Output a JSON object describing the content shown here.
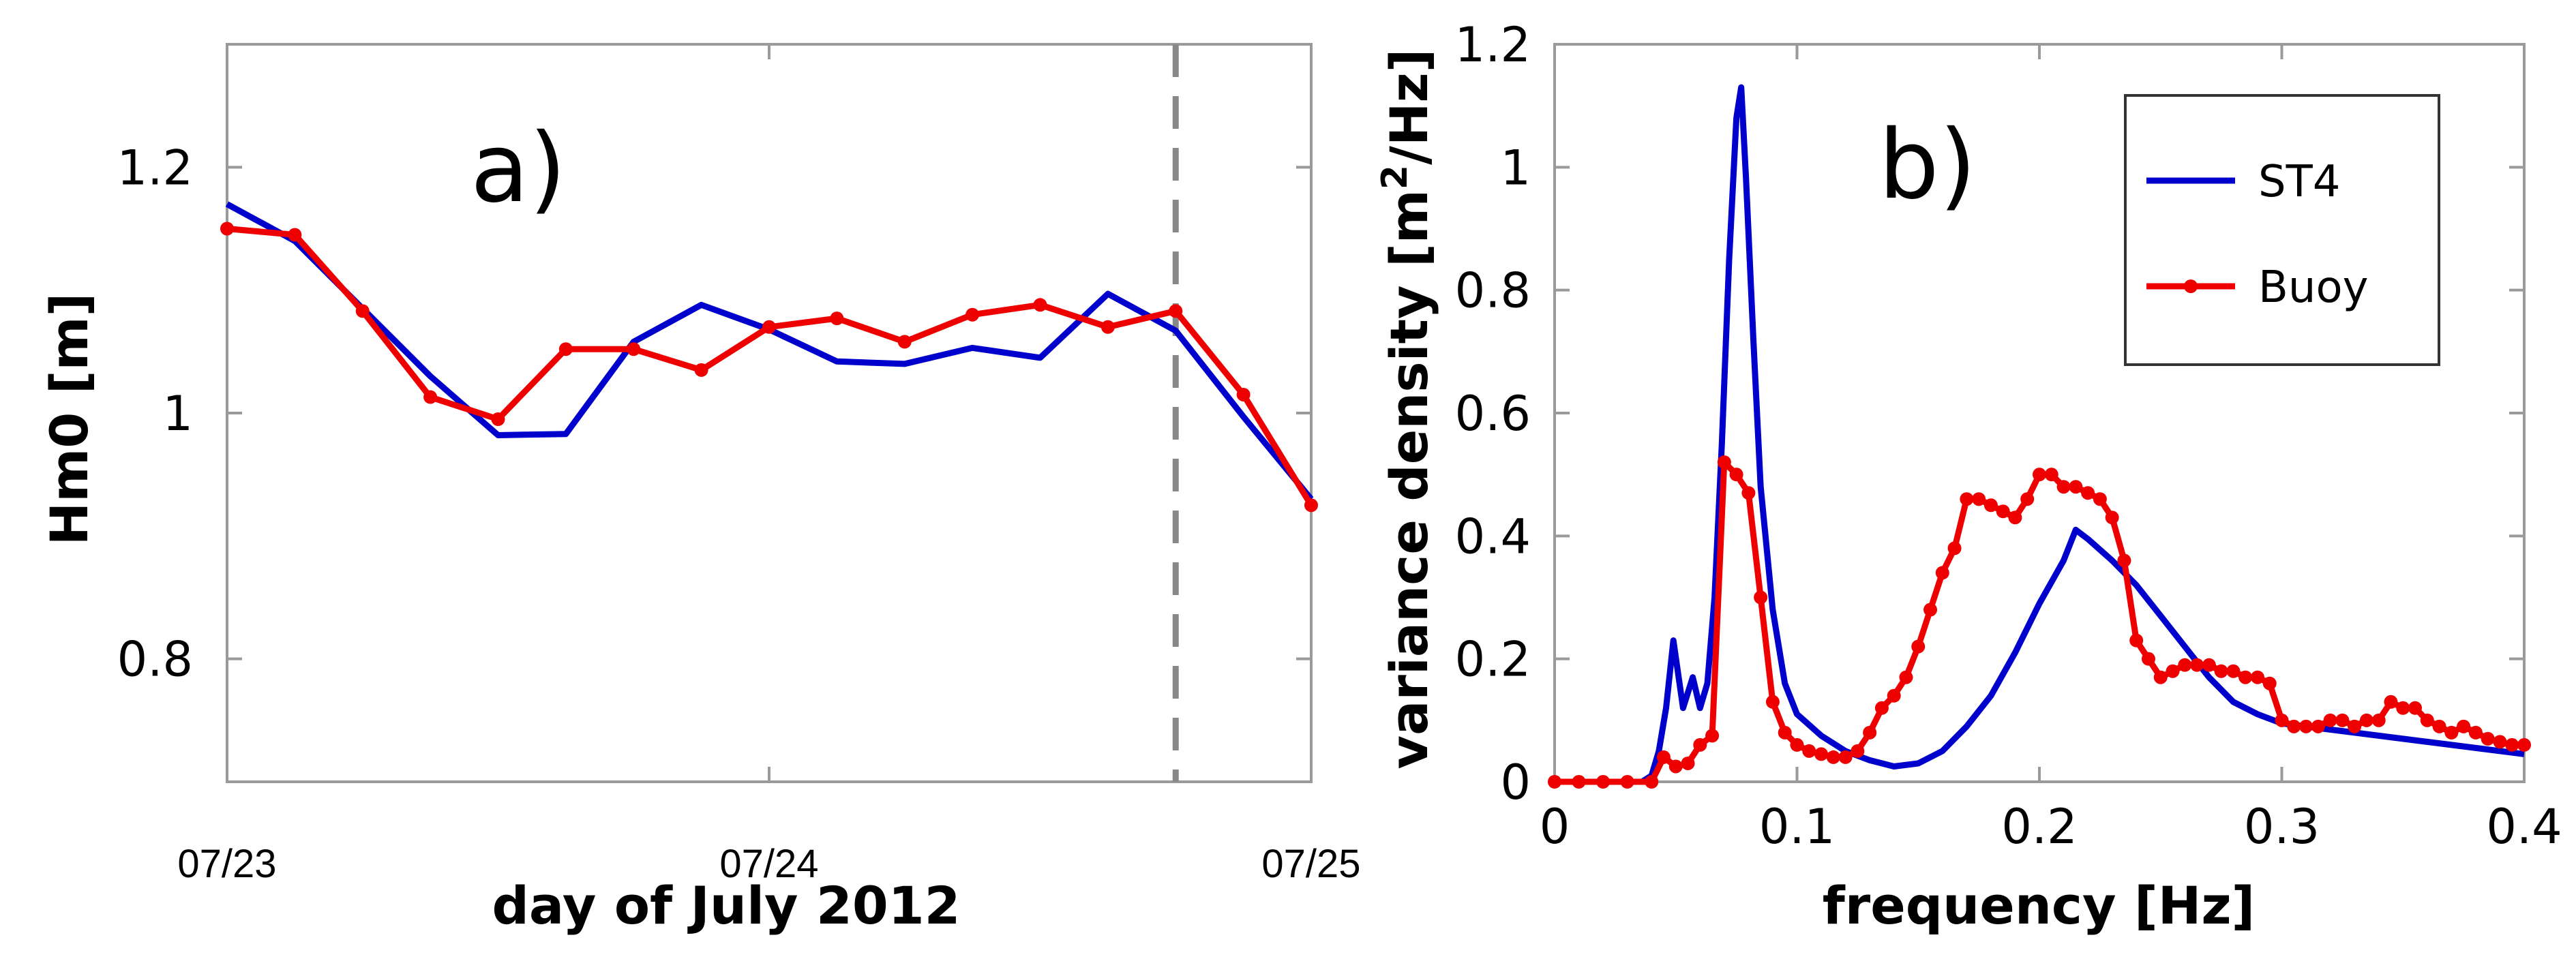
{
  "chart_data": [
    {
      "type": "line",
      "panel_label": "a)",
      "xlabel": "day of July 2012",
      "ylabel": "Hm0 [m]",
      "xlim": [
        0,
        2
      ],
      "ylim": [
        0.7,
        1.3
      ],
      "x_ticks": [
        {
          "value": 0,
          "label": "07/23"
        },
        {
          "value": 1,
          "label": "07/24"
        },
        {
          "value": 2,
          "label": "07/25"
        }
      ],
      "y_ticks": [
        {
          "value": 0.8,
          "label": "0.8"
        },
        {
          "value": 1.0,
          "label": "1"
        },
        {
          "value": 1.2,
          "label": "1.2"
        }
      ],
      "vertical_dashed_line_x": 1.75,
      "series": [
        {
          "name": "ST4",
          "color": "#0000cc",
          "markers": false,
          "x": [
            0,
            0.125,
            0.25,
            0.375,
            0.5,
            0.625,
            0.75,
            0.875,
            1.0,
            1.125,
            1.25,
            1.375,
            1.5,
            1.625,
            1.75,
            1.875,
            2.0
          ],
          "y": [
            1.17,
            1.14,
            1.085,
            1.03,
            0.982,
            0.983,
            1.058,
            1.088,
            1.068,
            1.042,
            1.04,
            1.053,
            1.045,
            1.097,
            1.067,
            0.997,
            0.93
          ]
        },
        {
          "name": "Buoy",
          "color": "#ee0000",
          "markers": true,
          "x": [
            0,
            0.125,
            0.25,
            0.375,
            0.5,
            0.625,
            0.75,
            0.875,
            1.0,
            1.125,
            1.25,
            1.375,
            1.5,
            1.625,
            1.75,
            1.875,
            2.0
          ],
          "y": [
            1.15,
            1.145,
            1.083,
            1.013,
            0.995,
            1.052,
            1.052,
            1.035,
            1.07,
            1.077,
            1.058,
            1.08,
            1.088,
            1.07,
            1.083,
            1.015,
            0.925
          ]
        }
      ],
      "grid": false
    },
    {
      "type": "line",
      "panel_label": "b)",
      "xlabel": "frequency [Hz]",
      "ylabel": "variance density [m²/Hz]",
      "ylabel_visible_parts": [
        "variance density [m",
        "2",
        "/Hz]"
      ],
      "xlim": [
        0,
        0.4
      ],
      "ylim": [
        0,
        1.2
      ],
      "x_ticks": [
        {
          "value": 0,
          "label": "0"
        },
        {
          "value": 0.1,
          "label": "0.1"
        },
        {
          "value": 0.2,
          "label": "0.2"
        },
        {
          "value": 0.3,
          "label": "0.3"
        },
        {
          "value": 0.4,
          "label": "0.4"
        }
      ],
      "y_ticks": [
        {
          "value": 0,
          "label": "0"
        },
        {
          "value": 0.2,
          "label": "0.2"
        },
        {
          "value": 0.4,
          "label": "0.4"
        },
        {
          "value": 0.6,
          "label": "0.6"
        },
        {
          "value": 0.8,
          "label": "0.8"
        },
        {
          "value": 1.0,
          "label": "1"
        },
        {
          "value": 1.2,
          "label": "1.2"
        }
      ],
      "legend": {
        "placement": "top-right",
        "entries": [
          "ST4",
          "Buoy"
        ]
      },
      "series": [
        {
          "name": "ST4",
          "color": "#0000cc",
          "markers": false,
          "x": [
            0.036,
            0.04,
            0.043,
            0.046,
            0.049,
            0.053,
            0.057,
            0.06,
            0.063,
            0.066,
            0.069,
            0.072,
            0.075,
            0.077,
            0.079,
            0.082,
            0.085,
            0.09,
            0.095,
            0.1,
            0.11,
            0.12,
            0.13,
            0.14,
            0.15,
            0.16,
            0.17,
            0.18,
            0.19,
            0.2,
            0.21,
            0.215,
            0.22,
            0.23,
            0.24,
            0.25,
            0.26,
            0.27,
            0.28,
            0.29,
            0.3,
            0.32,
            0.34,
            0.36,
            0.38,
            0.4
          ],
          "y": [
            0.0,
            0.01,
            0.05,
            0.12,
            0.23,
            0.12,
            0.17,
            0.12,
            0.16,
            0.3,
            0.55,
            0.85,
            1.08,
            1.13,
            0.98,
            0.72,
            0.48,
            0.28,
            0.16,
            0.11,
            0.075,
            0.05,
            0.035,
            0.025,
            0.03,
            0.05,
            0.09,
            0.14,
            0.21,
            0.29,
            0.36,
            0.41,
            0.395,
            0.36,
            0.32,
            0.27,
            0.22,
            0.17,
            0.13,
            0.11,
            0.095,
            0.085,
            0.075,
            0.065,
            0.055,
            0.045
          ]
        },
        {
          "name": "Buoy",
          "color": "#ee0000",
          "markers": true,
          "x": [
            0.0,
            0.01,
            0.02,
            0.03,
            0.04,
            0.045,
            0.05,
            0.055,
            0.06,
            0.065,
            0.07,
            0.075,
            0.08,
            0.085,
            0.09,
            0.095,
            0.1,
            0.105,
            0.11,
            0.115,
            0.12,
            0.125,
            0.13,
            0.135,
            0.14,
            0.145,
            0.15,
            0.155,
            0.16,
            0.165,
            0.17,
            0.175,
            0.18,
            0.185,
            0.19,
            0.195,
            0.2,
            0.205,
            0.21,
            0.215,
            0.22,
            0.225,
            0.23,
            0.235,
            0.24,
            0.245,
            0.25,
            0.255,
            0.26,
            0.265,
            0.27,
            0.275,
            0.28,
            0.285,
            0.29,
            0.295,
            0.3,
            0.305,
            0.31,
            0.315,
            0.32,
            0.325,
            0.33,
            0.335,
            0.34,
            0.345,
            0.35,
            0.355,
            0.36,
            0.365,
            0.37,
            0.375,
            0.38,
            0.385,
            0.39,
            0.395,
            0.4
          ],
          "y": [
            0.0,
            0.0,
            0.0,
            0.0,
            0.0,
            0.04,
            0.025,
            0.03,
            0.06,
            0.075,
            0.52,
            0.5,
            0.47,
            0.3,
            0.13,
            0.08,
            0.06,
            0.05,
            0.045,
            0.04,
            0.04,
            0.05,
            0.08,
            0.12,
            0.14,
            0.17,
            0.22,
            0.28,
            0.34,
            0.38,
            0.46,
            0.46,
            0.45,
            0.44,
            0.43,
            0.46,
            0.5,
            0.5,
            0.48,
            0.48,
            0.47,
            0.46,
            0.43,
            0.36,
            0.23,
            0.2,
            0.17,
            0.18,
            0.19,
            0.19,
            0.19,
            0.18,
            0.18,
            0.17,
            0.17,
            0.16,
            0.1,
            0.09,
            0.09,
            0.09,
            0.1,
            0.1,
            0.09,
            0.1,
            0.1,
            0.13,
            0.12,
            0.12,
            0.1,
            0.09,
            0.08,
            0.09,
            0.08,
            0.07,
            0.065,
            0.06,
            0.06
          ]
        }
      ],
      "grid": false
    }
  ]
}
